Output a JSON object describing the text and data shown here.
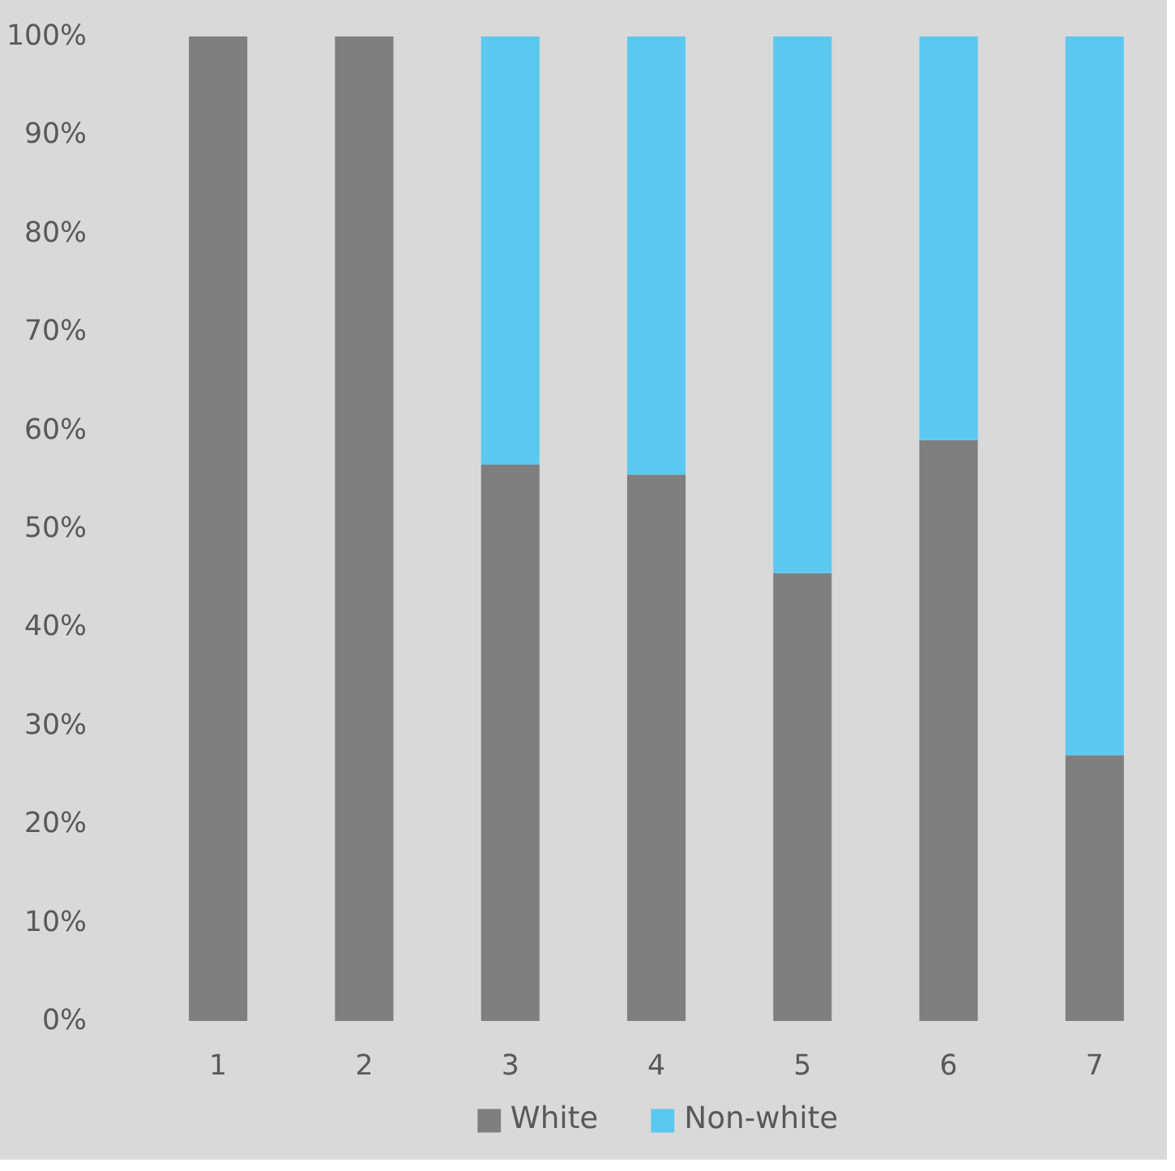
{
  "chart_data": {
    "type": "bar",
    "stacked": true,
    "categories": [
      "1",
      "2",
      "3",
      "4",
      "5",
      "6",
      "7"
    ],
    "series": [
      {
        "name": "White",
        "color": "#7f7f7f",
        "values": [
          100,
          100,
          56.5,
          55.5,
          45.5,
          59,
          27
        ]
      },
      {
        "name": "Non-white",
        "color": "#5bc8f0",
        "values": [
          0,
          0,
          43.5,
          44.5,
          54.5,
          41,
          73
        ]
      }
    ],
    "ylim": [
      0,
      100
    ],
    "yticks": [
      {
        "value": 0,
        "label": "0%"
      },
      {
        "value": 10,
        "label": "10%"
      },
      {
        "value": 20,
        "label": "20%"
      },
      {
        "value": 30,
        "label": "30%"
      },
      {
        "value": 40,
        "label": "40%"
      },
      {
        "value": 50,
        "label": "50%"
      },
      {
        "value": 60,
        "label": "60%"
      },
      {
        "value": 70,
        "label": "70%"
      },
      {
        "value": 80,
        "label": "80%"
      },
      {
        "value": 90,
        "label": "90%"
      },
      {
        "value": 100,
        "label": "100%"
      }
    ],
    "grid": false,
    "legend": "bottom"
  }
}
